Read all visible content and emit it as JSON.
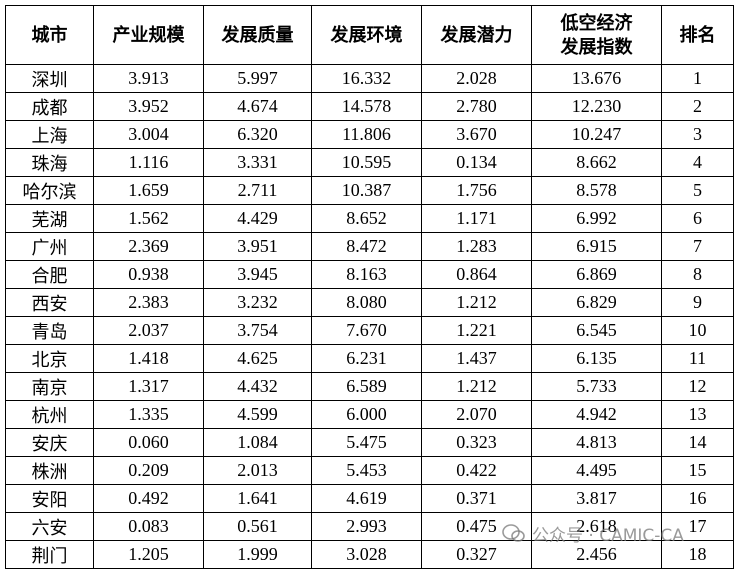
{
  "table": {
    "header": [
      "城市",
      "产业规模",
      "发展质量",
      "发展环境",
      "发展潜力",
      "低空经济\n发展指数",
      "排名"
    ],
    "rows": [
      [
        "深圳",
        "3.913",
        "5.997",
        "16.332",
        "2.028",
        "13.676",
        "1"
      ],
      [
        "成都",
        "3.952",
        "4.674",
        "14.578",
        "2.780",
        "12.230",
        "2"
      ],
      [
        "上海",
        "3.004",
        "6.320",
        "11.806",
        "3.670",
        "10.247",
        "3"
      ],
      [
        "珠海",
        "1.116",
        "3.331",
        "10.595",
        "0.134",
        "8.662",
        "4"
      ],
      [
        "哈尔滨",
        "1.659",
        "2.711",
        "10.387",
        "1.756",
        "8.578",
        "5"
      ],
      [
        "芜湖",
        "1.562",
        "4.429",
        "8.652",
        "1.171",
        "6.992",
        "6"
      ],
      [
        "广州",
        "2.369",
        "3.951",
        "8.472",
        "1.283",
        "6.915",
        "7"
      ],
      [
        "合肥",
        "0.938",
        "3.945",
        "8.163",
        "0.864",
        "6.869",
        "8"
      ],
      [
        "西安",
        "2.383",
        "3.232",
        "8.080",
        "1.212",
        "6.829",
        "9"
      ],
      [
        "青岛",
        "2.037",
        "3.754",
        "7.670",
        "1.221",
        "6.545",
        "10"
      ],
      [
        "北京",
        "1.418",
        "4.625",
        "6.231",
        "1.437",
        "6.135",
        "11"
      ],
      [
        "南京",
        "1.317",
        "4.432",
        "6.589",
        "1.212",
        "5.733",
        "12"
      ],
      [
        "杭州",
        "1.335",
        "4.599",
        "6.000",
        "2.070",
        "4.942",
        "13"
      ],
      [
        "安庆",
        "0.060",
        "1.084",
        "5.475",
        "0.323",
        "4.813",
        "14"
      ],
      [
        "株洲",
        "0.209",
        "2.013",
        "5.453",
        "0.422",
        "4.495",
        "15"
      ],
      [
        "安阳",
        "0.492",
        "1.641",
        "4.619",
        "0.371",
        "3.817",
        "16"
      ],
      [
        "六安",
        "0.083",
        "0.561",
        "2.993",
        "0.475",
        "2.618",
        "17"
      ],
      [
        "荆门",
        "1.205",
        "1.999",
        "3.028",
        "0.327",
        "2.456",
        "18"
      ]
    ]
  },
  "watermark": "公众号 · CAMIC-CA"
}
